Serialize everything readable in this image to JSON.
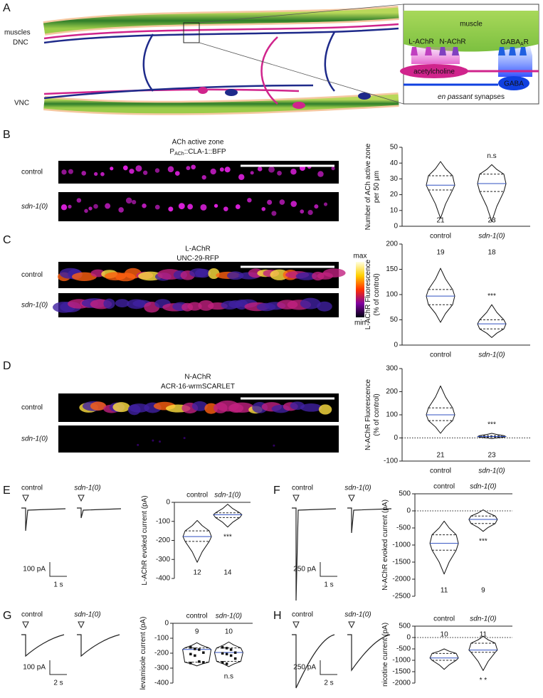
{
  "panel_labels": [
    "A",
    "B",
    "C",
    "D",
    "E",
    "F",
    "G",
    "H"
  ],
  "diagram": {
    "muscles": "muscles",
    "dnc": "DNC",
    "vnc": "VNC",
    "inset_muscle": "muscle",
    "l_achr": "L-AChR",
    "n_achr": "N-AChR",
    "gabaar": {
      "text": "GABA",
      "sub": "A",
      "tail": "R"
    },
    "acetylcholine": "acetylcholine",
    "gaba": "GABA",
    "en_passant": "en passant",
    "synapses": " synapses"
  },
  "images": [
    {
      "title": "ACh active zone",
      "subtitle": {
        "text": "P",
        "sub": "ACh",
        "tail": "::CLA-1::BFP"
      },
      "rows": [
        "control",
        "sdn-1(0)"
      ]
    },
    {
      "title": "L-AChR",
      "subtitle": {
        "text": "UNC-29-RFP",
        "sub": "",
        "tail": ""
      },
      "rows": [
        "control",
        "sdn-1(0)"
      ],
      "colorbar": [
        "max",
        "min"
      ]
    },
    {
      "title": "N-AChR",
      "subtitle": {
        "text": "ACR-16-wrmSCARLET",
        "sub": "",
        "tail": ""
      },
      "rows": [
        "control",
        "sdn-1(0)"
      ]
    }
  ],
  "traces": [
    {
      "labels": [
        "control",
        "sdn-1(0)"
      ],
      "scale_y": "100 pA",
      "scale_x": "1 s"
    },
    {
      "labels": [
        "control",
        "sdn-1(0)"
      ],
      "scale_y": "250 pA",
      "scale_x": "1 s"
    },
    {
      "labels": [
        "control",
        "sdn-1(0)"
      ],
      "scale_y": "100 pA",
      "scale_x": "2 s"
    },
    {
      "labels": [
        "control",
        "sdn-1(0)"
      ],
      "scale_y": "250 pA",
      "scale_x": "2 s"
    }
  ],
  "chart_data": [
    {
      "type": "violin",
      "ylabel": [
        "Number of ACh active zone",
        "per 50 µm"
      ],
      "categories": [
        "control",
        "sdn-1(0)"
      ],
      "ylim": [
        0,
        50
      ],
      "yticks": [
        0,
        10,
        20,
        30,
        40,
        50
      ],
      "min": [
        5,
        3
      ],
      "q1": [
        23,
        22
      ],
      "median": [
        26,
        27
      ],
      "q3": [
        32,
        33
      ],
      "max": [
        41,
        39
      ],
      "n": [
        21,
        23
      ],
      "significance": "n.s",
      "axis_position": "bottom",
      "n_position": "bottom"
    },
    {
      "type": "violin",
      "ylabel": [
        "L-AChR Fluorescence",
        "(% of control)"
      ],
      "categories": [
        "control",
        "sdn-1(0)"
      ],
      "ylim": [
        0,
        200
      ],
      "yticks": [
        0,
        50,
        100,
        150,
        200
      ],
      "min": [
        45,
        15
      ],
      "q1": [
        80,
        32
      ],
      "median": [
        97,
        42
      ],
      "q3": [
        110,
        50
      ],
      "max": [
        152,
        80
      ],
      "n": [
        19,
        18
      ],
      "significance": "***",
      "axis_position": "bottom",
      "n_position": "top"
    },
    {
      "type": "violin",
      "ylabel": [
        "N-AChR Fluorescence",
        "(% of control)"
      ],
      "categories": [
        "control",
        "sdn-1(0)"
      ],
      "ylim": [
        -100,
        300
      ],
      "yticks": [
        -100,
        0,
        100,
        200,
        300
      ],
      "min": [
        20,
        -3
      ],
      "q1": [
        75,
        3
      ],
      "median": [
        100,
        6
      ],
      "q3": [
        130,
        10
      ],
      "max": [
        225,
        20
      ],
      "n": [
        21,
        23
      ],
      "significance": "***",
      "hline": 0,
      "axis_position": "bottom",
      "n_position": "bottom"
    },
    {
      "type": "violin",
      "ylabel": [
        "L-AChR evoked current (pA)"
      ],
      "categories": [
        "control",
        "sdn-1(0)"
      ],
      "ylim": [
        -400,
        0
      ],
      "yticks": [
        0,
        -100,
        -200,
        -300,
        -400
      ],
      "min": [
        -315,
        -130
      ],
      "q1": [
        -205,
        -80
      ],
      "median": [
        -180,
        -65
      ],
      "q3": [
        -150,
        -55
      ],
      "max": [
        -95,
        -10
      ],
      "n": [
        12,
        14
      ],
      "significance": "***",
      "axis_position": "top",
      "n_position": "bottom"
    },
    {
      "type": "violin",
      "ylabel": [
        "N-AChR evoked current (pA)"
      ],
      "categories": [
        "control",
        "sdn-1(0)"
      ],
      "ylim": [
        -2500,
        500
      ],
      "yticks": [
        500,
        0,
        -500,
        -1000,
        -1500,
        -2000,
        -2500
      ],
      "min": [
        -1850,
        -600
      ],
      "q1": [
        -1150,
        -370
      ],
      "median": [
        -950,
        -250
      ],
      "q3": [
        -700,
        -150
      ],
      "max": [
        -300,
        30
      ],
      "n": [
        11,
        9
      ],
      "significance": "***",
      "hline": 0,
      "axis_position": "top",
      "n_position": "bottom"
    },
    {
      "type": "violin",
      "ylabel": [
        "levamisole current (pA)"
      ],
      "categories": [
        "control",
        "sdn-1(0)"
      ],
      "ylim": [
        -400,
        0
      ],
      "yticks": [
        0,
        -100,
        -200,
        -300,
        -400
      ],
      "min": [
        -285,
        -290
      ],
      "q1": [
        -260,
        -255
      ],
      "median": [
        -175,
        -195
      ],
      "q3": [
        -165,
        -165
      ],
      "max": [
        -130,
        -125
      ],
      "n": [
        9,
        10
      ],
      "significance": "n.s",
      "axis_position": "top",
      "n_position": "top",
      "points": [
        [
          -160,
          -170,
          -175,
          -195,
          -205,
          -215,
          -255,
          -260,
          -265
        ],
        [
          -160,
          -165,
          -175,
          -195,
          -200,
          -205,
          -215,
          -235,
          -260,
          -270
        ]
      ]
    },
    {
      "type": "violin",
      "ylabel": [
        "nicotine current (pA)"
      ],
      "categories": [
        "control",
        "sdn-1(0)"
      ],
      "ylim": [
        -2000,
        500
      ],
      "yticks": [
        500,
        0,
        -500,
        -1000,
        -1500,
        -2000
      ],
      "min": [
        -1400,
        -1450
      ],
      "q1": [
        -1000,
        -650
      ],
      "median": [
        -900,
        -550
      ],
      "q3": [
        -700,
        -250
      ],
      "max": [
        -500,
        50
      ],
      "n": [
        10,
        11
      ],
      "significance": "* *",
      "hline": 0,
      "axis_position": "top",
      "n_position": "top"
    }
  ]
}
